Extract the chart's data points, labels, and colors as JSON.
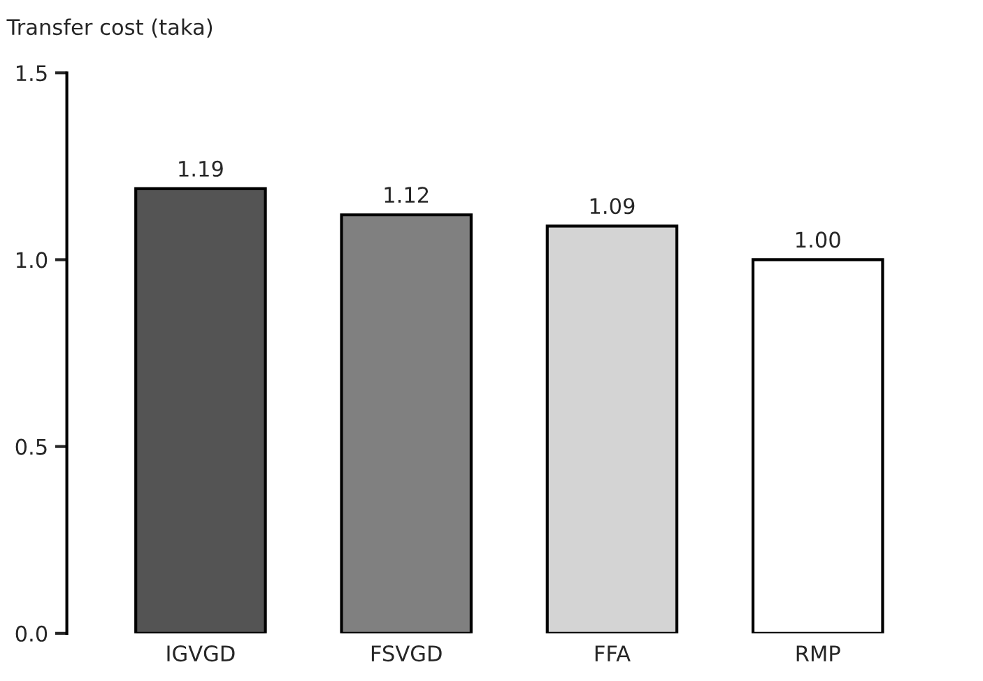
{
  "chart_data": {
    "type": "bar",
    "ylabel": "Transfer cost (taka)",
    "categories": [
      "IGVGD",
      "FSVGD",
      "FFA",
      "RMP"
    ],
    "values": [
      1.19,
      1.12,
      1.09,
      1.0
    ],
    "colors": [
      "#545454",
      "#808080",
      "#d4d4d4",
      "#ffffff"
    ],
    "value_labels": [
      "1.19",
      "1.12",
      "1.09",
      "1.00"
    ],
    "ylim": [
      0,
      1.5
    ],
    "yticks": [
      {
        "value": 0,
        "label": "0.0"
      },
      {
        "value": 0.5,
        "label": "0.5"
      },
      {
        "value": 1.0,
        "label": "1.0"
      },
      {
        "value": 1.5,
        "label": "1.5"
      }
    ],
    "grid": false,
    "legend": false
  }
}
